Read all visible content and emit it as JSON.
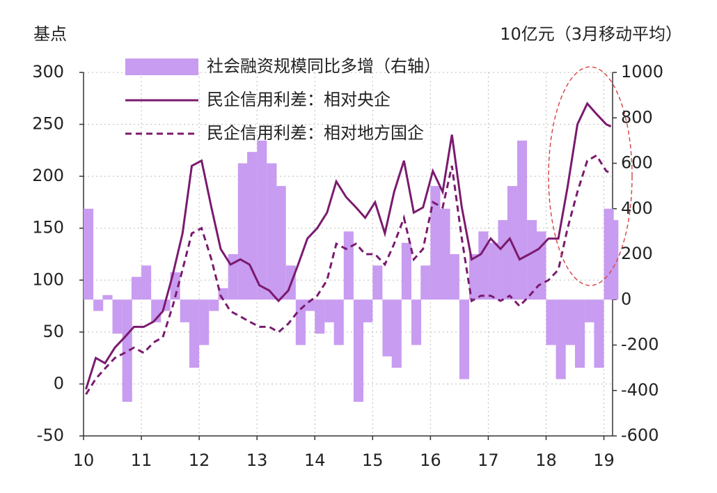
{
  "chart_data": {
    "type": "bar-line",
    "y_label": "基点",
    "y2_label": "10亿元（3月移动平均）",
    "x": [
      10,
      10.17,
      10.33,
      10.5,
      10.67,
      10.83,
      11,
      11.17,
      11.33,
      11.5,
      11.67,
      11.83,
      12,
      12.17,
      12.33,
      12.5,
      12.67,
      12.83,
      13,
      13.17,
      13.33,
      13.5,
      13.67,
      13.83,
      14,
      14.17,
      14.33,
      14.5,
      14.67,
      14.83,
      15,
      15.17,
      15.33,
      15.5,
      15.67,
      15.83,
      16,
      16.17,
      16.33,
      16.5,
      16.67,
      16.83,
      17,
      17.17,
      17.33,
      17.5,
      17.67,
      17.83,
      18,
      18.17,
      18.33,
      18.5,
      18.67,
      18.83,
      19,
      19.08
    ],
    "xlim": [
      10,
      19.15
    ],
    "xticks": [
      10,
      11,
      12,
      13,
      14,
      15,
      16,
      17,
      18,
      19
    ],
    "ylim": [
      -50,
      300
    ],
    "yticks": [
      -50,
      0,
      50,
      100,
      150,
      200,
      250,
      300
    ],
    "y2lim": [
      -600,
      1000
    ],
    "y2ticks": [
      -600,
      -400,
      -200,
      0,
      200,
      400,
      600,
      800,
      1000
    ],
    "grid": true,
    "series": [
      {
        "name": "社会融资规模同比多增（右轴）",
        "type": "bar",
        "axis": "y2",
        "color": "#c89cf0",
        "values": [
          400,
          -50,
          20,
          -150,
          -450,
          100,
          150,
          -100,
          -50,
          120,
          -100,
          -300,
          -200,
          -50,
          50,
          200,
          600,
          650,
          700,
          600,
          500,
          150,
          -200,
          -50,
          -150,
          -100,
          -200,
          300,
          -450,
          -100,
          150,
          -250,
          -300,
          250,
          -200,
          150,
          500,
          400,
          200,
          -350,
          200,
          300,
          250,
          350,
          500,
          700,
          350,
          300,
          -200,
          -350,
          -200,
          -300,
          -100,
          -300,
          400,
          350
        ]
      },
      {
        "name": "民企信用利差：相对央企",
        "type": "line",
        "color": "#7a1a6e",
        "dash": false,
        "values": [
          -5,
          25,
          20,
          35,
          45,
          55,
          55,
          60,
          70,
          105,
          145,
          210,
          215,
          170,
          130,
          115,
          120,
          115,
          95,
          90,
          80,
          90,
          115,
          140,
          150,
          165,
          195,
          180,
          170,
          160,
          175,
          145,
          185,
          215,
          165,
          170,
          205,
          185,
          240,
          170,
          120,
          125,
          140,
          130,
          140,
          120,
          125,
          130,
          140,
          140,
          190,
          250,
          270,
          260,
          250,
          248
        ]
      },
      {
        "name": "民企信用利差：相对地方国企",
        "type": "line",
        "color": "#7a1a6e",
        "dash": true,
        "values": [
          -10,
          5,
          15,
          25,
          30,
          35,
          30,
          40,
          45,
          75,
          110,
          145,
          150,
          120,
          85,
          70,
          65,
          60,
          55,
          55,
          50,
          58,
          70,
          78,
          85,
          100,
          135,
          130,
          135,
          125,
          125,
          115,
          135,
          160,
          120,
          130,
          175,
          170,
          210,
          140,
          80,
          85,
          85,
          80,
          85,
          75,
          85,
          95,
          100,
          110,
          150,
          185,
          215,
          220,
          205,
          203
        ]
      }
    ]
  }
}
